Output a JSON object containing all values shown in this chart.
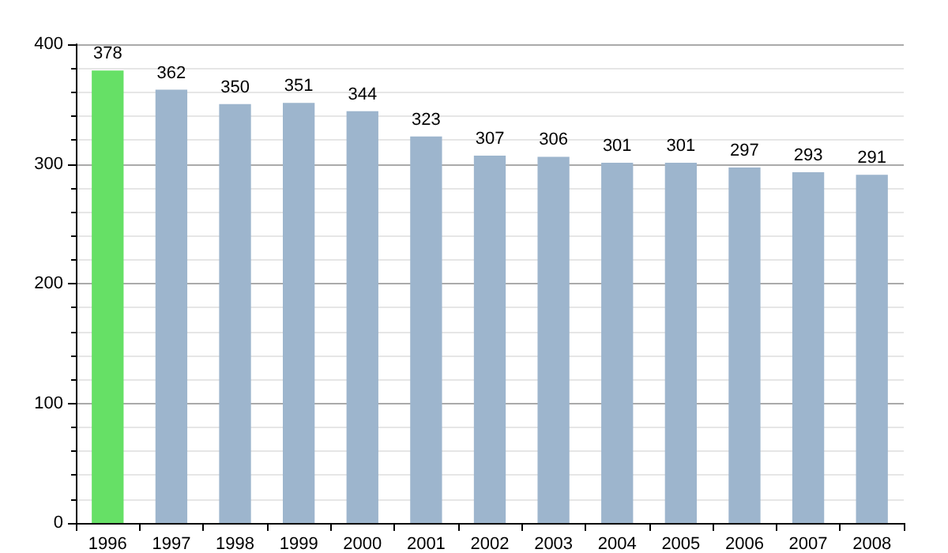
{
  "chart_data": {
    "type": "bar",
    "categories": [
      "1996",
      "1997",
      "1998",
      "1999",
      "2000",
      "2001",
      "2002",
      "2003",
      "2004",
      "2005",
      "2006",
      "2007",
      "2008"
    ],
    "values": [
      378,
      362,
      350,
      351,
      344,
      323,
      307,
      306,
      301,
      301,
      297,
      293,
      291
    ],
    "colors": [
      "#66e066",
      "#9db5cd",
      "#9db5cd",
      "#9db5cd",
      "#9db5cd",
      "#9db5cd",
      "#9db5cd",
      "#9db5cd",
      "#9db5cd",
      "#9db5cd",
      "#9db5cd",
      "#9db5cd",
      "#9db5cd"
    ],
    "ylim": [
      0,
      400
    ],
    "yticks": [
      0,
      100,
      200,
      300,
      400
    ],
    "grid": "y",
    "data_labels": true
  }
}
